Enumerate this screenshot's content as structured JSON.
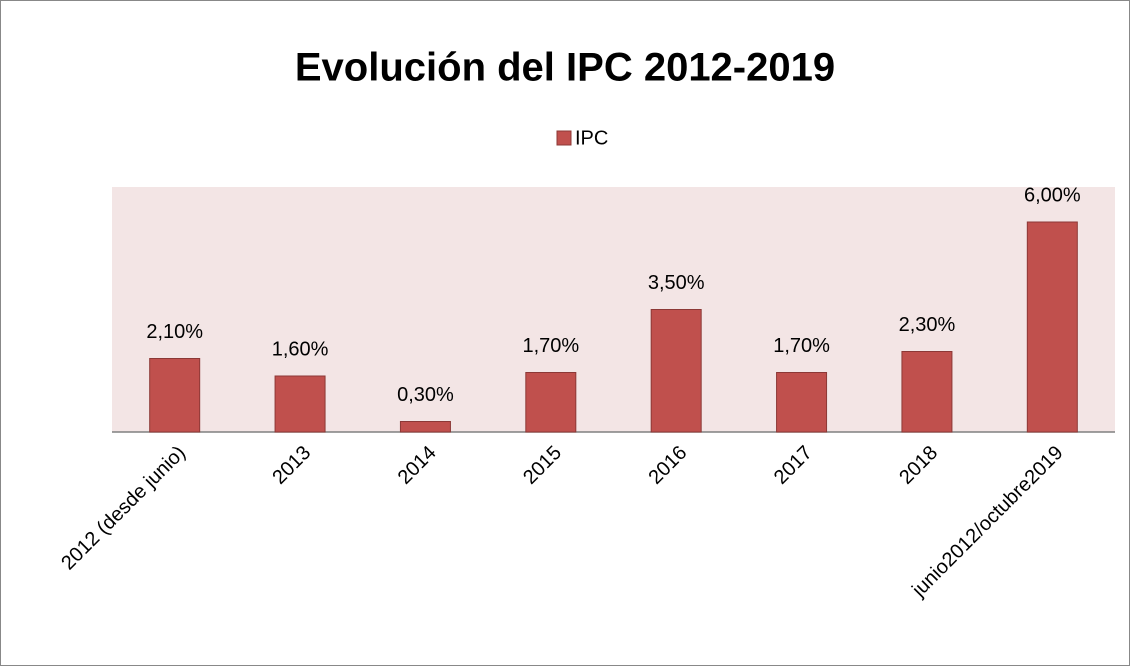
{
  "chart_data": {
    "type": "bar",
    "title": "Evolución del IPC 2012-2019",
    "categories": [
      "2012 (desde junio)",
      "2013",
      "2014",
      "2015",
      "2016",
      "2017",
      "2018",
      "junio2012/octubre2019"
    ],
    "series": [
      {
        "name": "IPC",
        "color": "#c0504d",
        "values": [
          2.1,
          1.6,
          0.3,
          1.7,
          3.5,
          1.7,
          2.3,
          6.0
        ],
        "value_labels": [
          "2,10%",
          "1,60%",
          "0,30%",
          "1,70%",
          "3,50%",
          "1,70%",
          "2,30%",
          "6,00%"
        ]
      }
    ],
    "ylim": [
      0,
      7
    ],
    "legend": "top"
  }
}
